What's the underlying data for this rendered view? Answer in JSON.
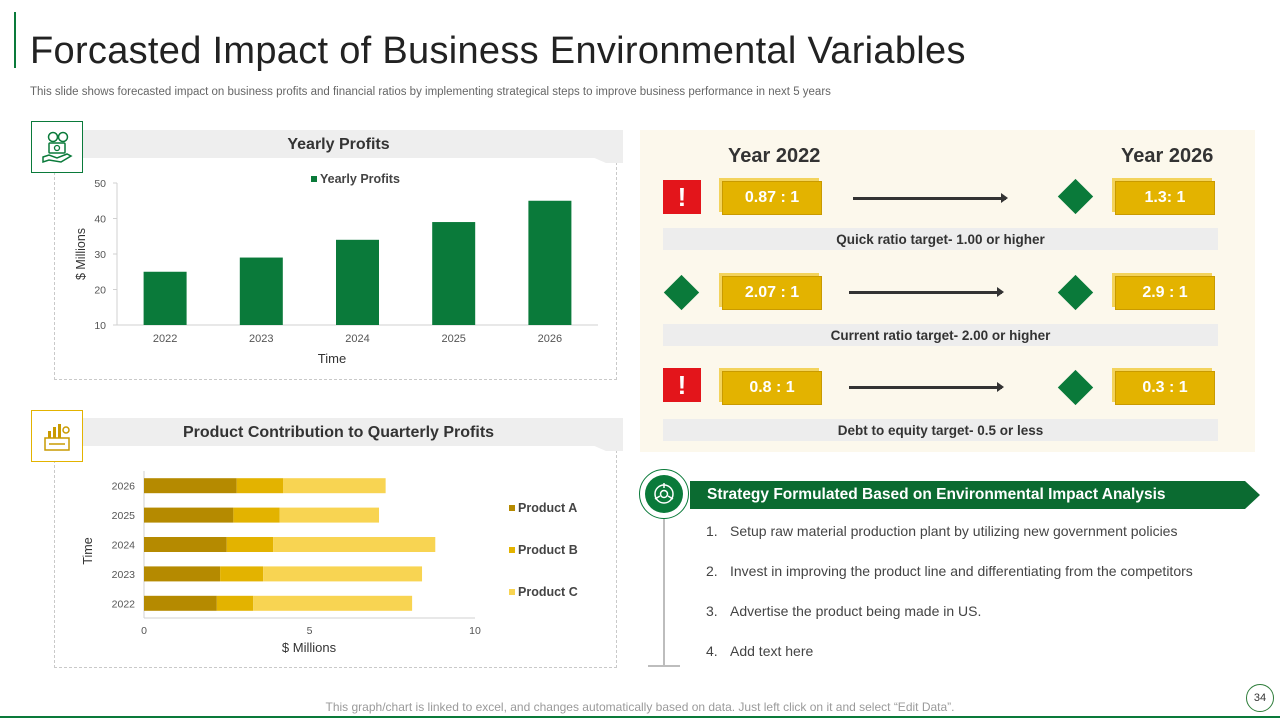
{
  "title": "Forcasted Impact of Business Environmental Variables",
  "subtitle": "This slide shows forecasted impact on business profits and financial ratios by implementing strategical steps to improve business performance in next 5 years",
  "colors": {
    "green": "#0a7a3a",
    "dark_green": "#0b6b31",
    "gold": "#e3b300",
    "gold_dark": "#b58a00",
    "light_gold": "#f8d452",
    "red": "#e3151b"
  },
  "icons": {
    "profits_icon": "money-hand-icon",
    "product_icon": "product-chart-icon",
    "strategy_icon": "environment-analysis-icon"
  },
  "chart_data": [
    {
      "type": "bar",
      "title": "Yearly Profits",
      "categories": [
        "2022",
        "2023",
        "2024",
        "2025",
        "2026"
      ],
      "series": [
        {
          "name": "Yearly Profits",
          "values": [
            25,
            29,
            34,
            39,
            45
          ]
        }
      ],
      "xlabel": "Time",
      "ylabel": "$ Millions",
      "ylim": [
        10,
        50
      ],
      "yticks": [
        "10",
        "20",
        "30",
        "40",
        "50"
      ],
      "legend": "top"
    },
    {
      "type": "bar",
      "orientation": "horizontal-stacked",
      "title": "Product Contribution to Quarterly Profits",
      "categories": [
        "2026",
        "2025",
        "2024",
        "2023",
        "2022"
      ],
      "series": [
        {
          "name": "Product A",
          "values": [
            2.8,
            2.7,
            2.5,
            2.3,
            2.2
          ]
        },
        {
          "name": "Product B",
          "values": [
            1.4,
            1.4,
            1.4,
            1.3,
            1.1
          ]
        },
        {
          "name": "Product C",
          "values": [
            3.1,
            3.0,
            4.9,
            4.8,
            4.8
          ]
        }
      ],
      "xlabel": "$ Millions",
      "ylabel": "Time",
      "xlim": [
        0,
        10
      ],
      "xticks": [
        "0",
        "5",
        "10"
      ],
      "legend": "right"
    }
  ],
  "ratios": {
    "year_start": "Year 2022",
    "year_end": "Year 2026",
    "rows": [
      {
        "start_value": "0.87 : 1",
        "end_value": "1.3: 1",
        "target": "Quick ratio target- 1.00 or higher",
        "start_icon": "alert-icon"
      },
      {
        "start_value": "2.07 : 1",
        "end_value": "2.9 : 1",
        "target": "Current ratio target- 2.00 or higher",
        "start_icon": "diamond-icon"
      },
      {
        "start_value": "0.8 : 1",
        "end_value": "0.3 : 1",
        "target": "Debt to equity target- 0.5 or less",
        "start_icon": "alert-icon"
      }
    ],
    "alert_symbol": "!"
  },
  "strategy": {
    "heading": "Strategy Formulated Based on Environmental Impact Analysis",
    "items": [
      {
        "num": "1.",
        "text": "Setup raw material production plant by utilizing new government policies"
      },
      {
        "num": "2.",
        "text": "Invest in improving the product line and differentiating from the competitors"
      },
      {
        "num": "3.",
        "text": "Advertise the product being made in US."
      },
      {
        "num": "4.",
        "text": "Add text here"
      }
    ]
  },
  "footer_note": "This graph/chart is linked to excel, and changes automatically based on data. Just left click on it and select “Edit Data”.",
  "page_number": "34"
}
